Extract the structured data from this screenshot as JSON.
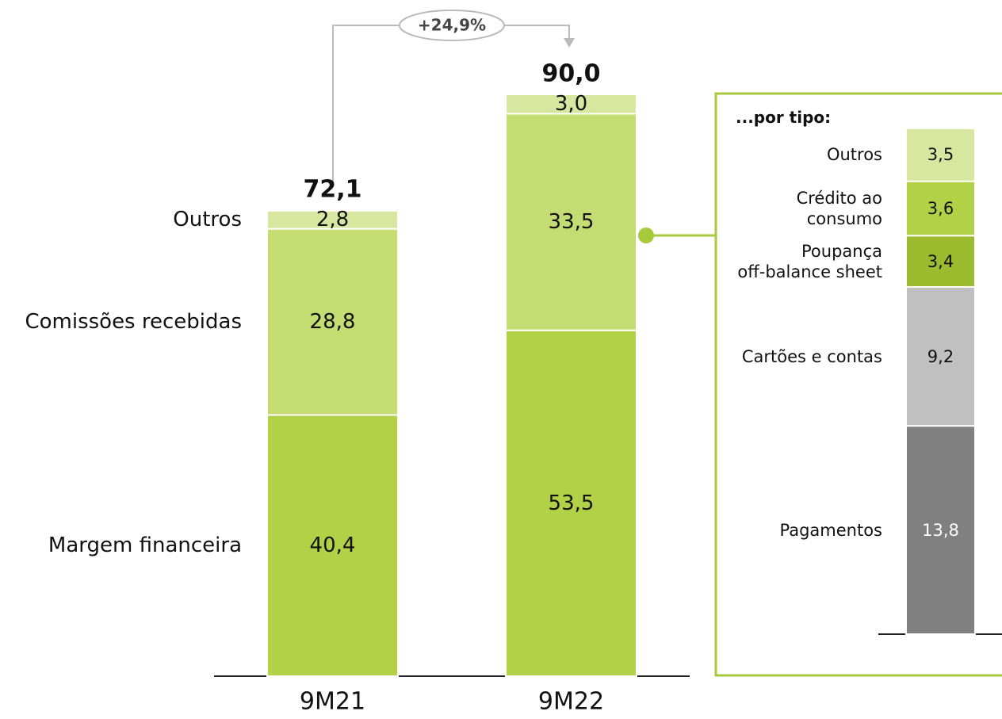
{
  "chart_data": [
    {
      "type": "stacked_bar",
      "categories": [
        "9M21",
        "9M22"
      ],
      "series": [
        {
          "name": "Margem financeira",
          "color": "#b3d147",
          "values": [
            40.4,
            53.5
          ],
          "value_labels": [
            "40,4",
            "53,5"
          ]
        },
        {
          "name": "Comissões recebidas",
          "color": "#c5dc72",
          "values": [
            28.8,
            33.5
          ],
          "value_labels": [
            "28,8",
            "33,5"
          ]
        },
        {
          "name": "Outros",
          "color": "#d7e79f",
          "values": [
            2.8,
            3.0
          ],
          "value_labels": [
            "2,8",
            "3,0"
          ]
        }
      ],
      "totals": [
        72.1,
        90.0
      ],
      "total_labels": [
        "72,1",
        "90,0"
      ],
      "annotation": "+24,9%"
    },
    {
      "type": "stacked_bar",
      "title": "...por tipo:",
      "series": [
        {
          "name": "Pagamentos",
          "color": "#808080",
          "values": [
            13.8
          ],
          "value_labels": [
            "13,8"
          ]
        },
        {
          "name": "Cartões e contas",
          "color": "#c0c0c0",
          "values": [
            9.2
          ],
          "value_labels": [
            "9,2"
          ]
        },
        {
          "name": "Poupança\noff-balance sheet",
          "color": "#9dbb2f",
          "values": [
            3.4
          ],
          "value_labels": [
            "3,4"
          ]
        },
        {
          "name": "Crédito ao\nconsumo",
          "color": "#b3d147",
          "values": [
            3.6
          ],
          "value_labels": [
            "3,6"
          ]
        },
        {
          "name": "Outros",
          "color": "#d7e79f",
          "values": [
            3.5
          ],
          "value_labels": [
            "3,5"
          ]
        }
      ]
    }
  ]
}
